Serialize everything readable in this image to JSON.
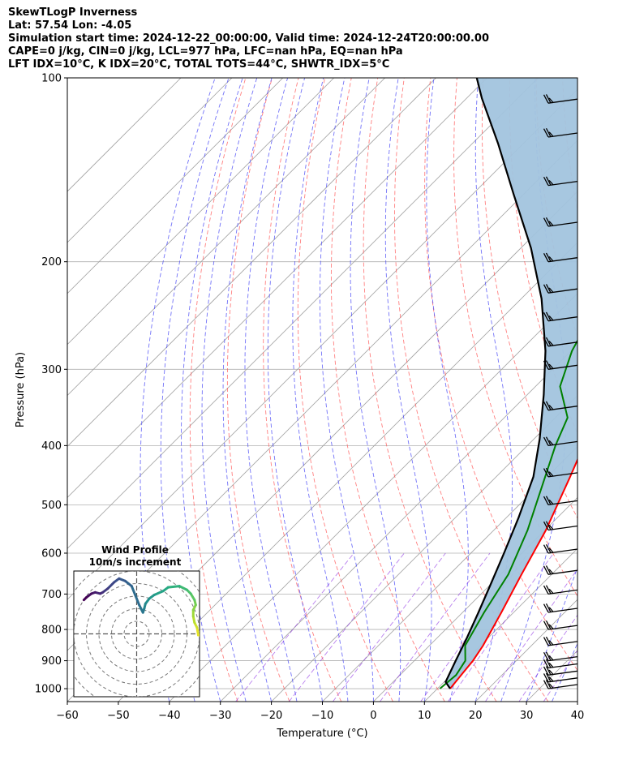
{
  "header": {
    "line1": "SkewTLogP Inverness",
    "line2": "Lat: 57.54   Lon: -4.05",
    "line3": "Simulation start time: 2024-12-22_00:00:00, Valid time: 2024-12-24T20:00:00.00",
    "line4": "CAPE=0 j/kg, CIN=0 j/kg, LCL=977 hPa, LFC=nan hPa, EQ=nan hPa",
    "line5": "LFT IDX=10°C, K IDX=20°C, TOTAL TOTS=44°C, SHWTR_IDX=5°C"
  },
  "colors": {
    "temperature": "#ff0000",
    "dewpoint": "#008000",
    "parcel": "#000000",
    "cape_fill": "#a2c4de",
    "dry_adiabat": "#ff5555",
    "moist_adiabat": "#4f4ff6",
    "mixing_ratio": "#8a2be2",
    "isotherm": "#a0a0a0",
    "isobar": "#b0b0b0"
  },
  "chart_data": [
    {
      "type": "line",
      "name": "skewt",
      "xlabel": "Temperature (°C)",
      "ylabel": "Pressure (hPa)",
      "xlim": [
        -60,
        40
      ],
      "ylim": [
        1050,
        100
      ],
      "y_scale": "log",
      "skew_degrees": 45,
      "xticks": [
        -60,
        -50,
        -40,
        -30,
        -20,
        -10,
        0,
        10,
        20,
        30,
        40
      ],
      "yticks": [
        1000,
        900,
        800,
        700,
        600,
        500,
        400,
        300,
        200,
        100
      ],
      "grid": true,
      "series": [
        {
          "name": "temperature",
          "points": [
            [
              12.5,
              1000
            ],
            [
              12.0,
              950
            ],
            [
              11.5,
              900
            ],
            [
              10.5,
              850
            ],
            [
              7.6,
              750
            ],
            [
              4.1,
              650
            ],
            [
              0.2,
              550
            ],
            [
              -5.5,
              450
            ],
            [
              -12.9,
              350
            ],
            [
              -22.0,
              260
            ],
            [
              -34.7,
              190
            ],
            [
              -40.0,
              165
            ],
            [
              -42.0,
              150
            ],
            [
              -39.0,
              130
            ],
            [
              -32.0,
              112
            ],
            [
              -29.0,
              100
            ]
          ]
        },
        {
          "name": "dewpoint",
          "points": [
            [
              10.5,
              1000
            ],
            [
              11.0,
              950
            ],
            [
              10.0,
              900
            ],
            [
              7.0,
              850
            ],
            [
              4.2,
              750
            ],
            [
              1.5,
              650
            ],
            [
              -3.4,
              550
            ],
            [
              -10.4,
              450
            ],
            [
              -14.5,
              400
            ],
            [
              -17.6,
              360
            ],
            [
              -25.2,
              320
            ],
            [
              -29.8,
              280
            ],
            [
              -34.5,
              230
            ],
            [
              -40.0,
              200
            ],
            [
              -45.5,
              180
            ],
            [
              -51.4,
              150
            ],
            [
              -55.0,
              135
            ],
            [
              -56.3,
              125
            ],
            [
              -59.5,
              112
            ],
            [
              -59.4,
              100
            ]
          ]
        },
        {
          "name": "parcel",
          "points": [
            [
              12.5,
              1000
            ],
            [
              10.3,
              975
            ],
            [
              8.1,
              900
            ],
            [
              5.8,
              825
            ],
            [
              3.1,
              750
            ],
            [
              0.0,
              675
            ],
            [
              -3.5,
              600
            ],
            [
              -7.6,
              525
            ],
            [
              -12.7,
              450
            ],
            [
              -18.9,
              390
            ],
            [
              -26.8,
              330
            ],
            [
              -35.0,
              280
            ],
            [
              -46.0,
              230
            ],
            [
              -58.0,
              190
            ],
            [
              -72.0,
              155
            ],
            [
              -85.0,
              128
            ],
            [
              -97.0,
              108
            ],
            [
              -102.0,
              100
            ]
          ]
        }
      ],
      "cape_cin_fill": "between parcel and temperature",
      "wind_barbs": {
        "placement": "right",
        "levels": [
          1000,
          975,
          950,
          925,
          900,
          850,
          800,
          750,
          700,
          650,
          600,
          550,
          500,
          450,
          400,
          350,
          300,
          275,
          250,
          225,
          200,
          175,
          150,
          125,
          110
        ],
        "barb_style": "two full barbs and one half barb, pointing from west-north-west"
      }
    },
    {
      "type": "line",
      "name": "hodograph",
      "title": "Wind Profile",
      "subtitle": "10m/s increment",
      "ring_increment": 10,
      "range": [
        -50,
        50
      ],
      "colormap": "viridis",
      "series": [
        {
          "name": "wind profile",
          "points": [
            [
              52,
              -1
            ],
            [
              49,
              -1
            ],
            [
              48,
              5
            ],
            [
              46,
              9
            ],
            [
              45,
              14
            ],
            [
              45,
              19
            ],
            [
              47,
              23
            ],
            [
              46,
              27
            ],
            [
              43,
              32
            ],
            [
              40,
              35
            ],
            [
              34,
              38
            ],
            [
              25,
              37
            ],
            [
              21,
              34
            ],
            [
              14,
              31
            ],
            [
              10,
              28
            ],
            [
              7,
              24
            ],
            [
              6,
              20
            ],
            [
              5,
              17
            ],
            [
              2,
              23
            ],
            [
              -4,
              38
            ],
            [
              -9,
              42
            ],
            [
              -14,
              44
            ],
            [
              -18,
              41
            ],
            [
              -23,
              36
            ],
            [
              -27,
              33
            ],
            [
              -29,
              32
            ],
            [
              -33,
              33
            ],
            [
              -36,
              32
            ],
            [
              -40,
              29
            ],
            [
              -42,
              27
            ]
          ]
        }
      ]
    }
  ]
}
